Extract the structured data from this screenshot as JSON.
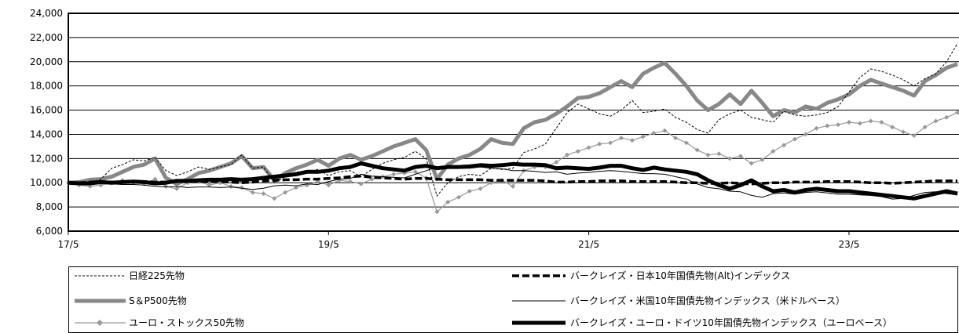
{
  "chart_data": {
    "type": "line",
    "grid": true,
    "legend": "bottom",
    "xlim": [
      "2017-05",
      "2024-03"
    ],
    "ylim": [
      6000,
      24000
    ],
    "yticks": [
      {
        "value": 24000,
        "label": "24,000"
      },
      {
        "value": 22000,
        "label": "22,000"
      },
      {
        "value": 20000,
        "label": "20,000"
      },
      {
        "value": 18000,
        "label": "18,000"
      },
      {
        "value": 16000,
        "label": "16,000"
      },
      {
        "value": 14000,
        "label": "14,000"
      },
      {
        "value": 12000,
        "label": "12,000"
      },
      {
        "value": 10000,
        "label": "10,000"
      },
      {
        "value": 8000,
        "label": "8,000"
      },
      {
        "value": 6000,
        "label": "6,000"
      }
    ],
    "xticks": [
      {
        "date": "2017-05",
        "label": "17/5"
      },
      {
        "date": "2019-05",
        "label": "19/5"
      },
      {
        "date": "2021-05",
        "label": "21/5"
      },
      {
        "date": "2023-05",
        "label": "23/5"
      }
    ],
    "x": [
      "2017-05",
      "2017-06",
      "2017-07",
      "2017-08",
      "2017-09",
      "2017-10",
      "2017-11",
      "2017-12",
      "2018-01",
      "2018-02",
      "2018-03",
      "2018-04",
      "2018-05",
      "2018-06",
      "2018-07",
      "2018-08",
      "2018-09",
      "2018-10",
      "2018-11",
      "2018-12",
      "2019-01",
      "2019-02",
      "2019-03",
      "2019-04",
      "2019-05",
      "2019-06",
      "2019-07",
      "2019-08",
      "2019-09",
      "2019-10",
      "2019-11",
      "2019-12",
      "2020-01",
      "2020-02",
      "2020-03",
      "2020-04",
      "2020-05",
      "2020-06",
      "2020-07",
      "2020-08",
      "2020-09",
      "2020-10",
      "2020-11",
      "2020-12",
      "2021-01",
      "2021-02",
      "2021-03",
      "2021-04",
      "2021-05",
      "2021-06",
      "2021-07",
      "2021-08",
      "2021-09",
      "2021-10",
      "2021-11",
      "2021-12",
      "2022-01",
      "2022-02",
      "2022-03",
      "2022-04",
      "2022-05",
      "2022-06",
      "2022-07",
      "2022-08",
      "2022-09",
      "2022-10",
      "2022-11",
      "2022-12",
      "2023-01",
      "2023-02",
      "2023-03",
      "2023-04",
      "2023-05",
      "2023-06",
      "2023-07",
      "2023-08",
      "2023-09",
      "2023-10",
      "2023-11",
      "2023-12",
      "2024-01",
      "2024-02",
      "2024-03"
    ],
    "series": [
      {
        "name": "日経225先物",
        "color": "#000000",
        "style": "thin-dashed",
        "values": [
          10000,
          10100,
          10000,
          10300,
          11200,
          11500,
          11900,
          11800,
          12100,
          11000,
          10600,
          10900,
          11300,
          11100,
          11300,
          11500,
          12300,
          11200,
          11300,
          10000,
          10500,
          10900,
          10800,
          11100,
          10600,
          10900,
          11000,
          10500,
          11100,
          11600,
          11900,
          12100,
          12600,
          12000,
          8900,
          10000,
          10500,
          10700,
          10600,
          11200,
          11100,
          11200,
          12500,
          12800,
          13200,
          14500,
          15800,
          16500,
          16100,
          15700,
          15500,
          16000,
          16800,
          15800,
          15900,
          16100,
          15400,
          15000,
          14400,
          14100,
          15200,
          15700,
          16000,
          15400,
          15200,
          15000,
          15900,
          15600,
          15500,
          15600,
          15800,
          16300,
          17500,
          18700,
          19400,
          19200,
          18900,
          18500,
          18000,
          18600,
          19000,
          20000,
          21500
        ]
      },
      {
        "name": "S＆P500先物",
        "color": "#888888",
        "style": "thick",
        "values": [
          10000,
          10050,
          10250,
          10300,
          10500,
          10900,
          11300,
          11500,
          12000,
          10400,
          9900,
          10300,
          10800,
          11000,
          11300,
          11600,
          12200,
          11200,
          11300,
          10200,
          10800,
          11200,
          11500,
          11900,
          11400,
          12000,
          12300,
          11900,
          12200,
          12600,
          13000,
          13300,
          13600,
          12700,
          10300,
          11500,
          12000,
          12300,
          12800,
          13600,
          13300,
          13200,
          14500,
          15000,
          15200,
          15700,
          16300,
          17000,
          17100,
          17400,
          17900,
          18400,
          17900,
          19000,
          19500,
          19900,
          19000,
          18000,
          16800,
          16000,
          16500,
          17300,
          16500,
          17600,
          16600,
          15500,
          16000,
          15800,
          16300,
          16100,
          16600,
          16900,
          17300,
          18000,
          18500,
          18200,
          17900,
          17600,
          17200,
          18400,
          18900,
          19500,
          19800
        ]
      },
      {
        "name": "ユーロ・ストックス50先物",
        "color": "#999999",
        "style": "thin-diamond",
        "values": [
          10000,
          9800,
          9700,
          9800,
          10000,
          10200,
          10000,
          9900,
          10300,
          9700,
          9500,
          10000,
          10100,
          9800,
          10000,
          9700,
          9600,
          9200,
          9100,
          8700,
          9200,
          9600,
          9800,
          10100,
          9800,
          10200,
          10100,
          9900,
          10300,
          10500,
          10700,
          10800,
          10900,
          10400,
          7600,
          8400,
          8800,
          9300,
          9500,
          10000,
          10200,
          9700,
          11000,
          11300,
          11300,
          11700,
          12300,
          12600,
          12900,
          13200,
          13300,
          13700,
          13500,
          13800,
          14100,
          14300,
          13700,
          13300,
          12700,
          12300,
          12400,
          12000,
          12200,
          11600,
          11900,
          12600,
          13100,
          13600,
          14000,
          14500,
          14700,
          14800,
          15000,
          14900,
          15100,
          15000,
          14600,
          14200,
          13900,
          14600,
          15100,
          15400,
          15800
        ]
      },
      {
        "name": "バークレイズ・日本10年国債先物(Alt)インデックス",
        "color": "#000000",
        "style": "thick-dashed",
        "values": [
          10000,
          10000,
          10050,
          10100,
          10050,
          10050,
          10100,
          10100,
          10050,
          10050,
          10100,
          10100,
          10100,
          10100,
          10100,
          10050,
          10000,
          10050,
          10150,
          10200,
          10250,
          10250,
          10300,
          10300,
          10350,
          10400,
          10500,
          10550,
          10450,
          10400,
          10350,
          10300,
          10350,
          10350,
          10300,
          10250,
          10250,
          10250,
          10250,
          10200,
          10200,
          10200,
          10200,
          10200,
          10150,
          10050,
          10050,
          10100,
          10100,
          10150,
          10150,
          10150,
          10100,
          10100,
          10100,
          10100,
          10050,
          10000,
          10000,
          9950,
          9950,
          10000,
          9950,
          9900,
          9950,
          10000,
          10000,
          10050,
          10050,
          10050,
          10100,
          10100,
          10100,
          10050,
          10000,
          10000,
          9950,
          10000,
          10050,
          10100,
          10150,
          10150,
          10150
        ]
      },
      {
        "name": "バークレイズ・米国10年国債先物インデックス（米ドルベース）",
        "color": "#000000",
        "style": "thin",
        "values": [
          10000,
          10000,
          9950,
          10050,
          9900,
          9850,
          9850,
          9800,
          9700,
          9650,
          9700,
          9600,
          9650,
          9650,
          9600,
          9650,
          9550,
          9450,
          9550,
          9750,
          9800,
          9750,
          9900,
          9850,
          10100,
          10300,
          10350,
          10700,
          10550,
          10500,
          10450,
          10400,
          10700,
          11000,
          11300,
          11250,
          11200,
          11200,
          11300,
          11200,
          11150,
          11000,
          11000,
          10950,
          10850,
          10900,
          10700,
          10800,
          10850,
          10950,
          11000,
          10950,
          10850,
          10750,
          10750,
          10700,
          10500,
          10300,
          9900,
          9600,
          9500,
          9300,
          9250,
          8950,
          8800,
          9100,
          9150,
          9050,
          9200,
          9250,
          9150,
          9050,
          9050,
          9000,
          8950,
          8850,
          8650,
          8700,
          8950,
          9200,
          9250,
          9100,
          9000
        ]
      },
      {
        "name": "バークレイズ・ユーロ・ドイツ10年国債先物インデックス（ユーロベース）",
        "color": "#000000",
        "style": "thick",
        "values": [
          10000,
          9950,
          9950,
          10050,
          10000,
          10050,
          10100,
          10050,
          9950,
          10000,
          10150,
          10150,
          10200,
          10250,
          10250,
          10300,
          10250,
          10300,
          10400,
          10500,
          10600,
          10700,
          10900,
          10900,
          11000,
          11200,
          11300,
          11600,
          11400,
          11200,
          11100,
          11000,
          11300,
          11400,
          11200,
          11300,
          11300,
          11350,
          11450,
          11400,
          11450,
          11550,
          11500,
          11500,
          11450,
          11200,
          11250,
          11200,
          11150,
          11250,
          11400,
          11400,
          11200,
          11050,
          11250,
          11100,
          11000,
          10900,
          10700,
          10200,
          9800,
          9500,
          9800,
          10200,
          9700,
          9300,
          9400,
          9200,
          9400,
          9500,
          9400,
          9300,
          9300,
          9200,
          9100,
          9000,
          8900,
          8800,
          8700,
          8900,
          9100,
          9300,
          9100
        ]
      }
    ]
  }
}
